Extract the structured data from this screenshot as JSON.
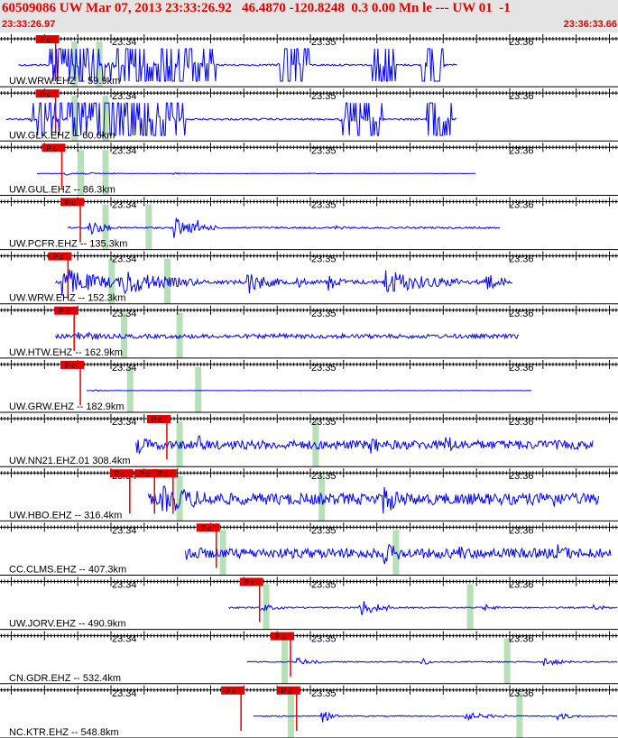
{
  "header": {
    "title": "60509086 UW Mar 07, 2013 23:33:26.92   46.4870 -120.8248  0.3 0.00 Mn le --- UW 01  -1",
    "start_time": "23:33:26.97",
    "end_time": "23:36:33.66"
  },
  "colors": {
    "header_text": "#e00000",
    "header_bg": "#e4e4e4",
    "trace": "#0000ee",
    "pick_fill": "#e00000",
    "window_fill": "#b8e0b8",
    "axis": "#000000"
  },
  "time_labels": [
    "23:34",
    "23:35",
    "23:36"
  ],
  "traces": [
    {
      "label": "UW.WRW.EHZ -- 59.9km",
      "picks": [
        {
          "text": "P c",
          "t": 0.09
        }
      ],
      "windows": [
        0.12,
        0.16
      ],
      "wave": {
        "start": 0.03,
        "end": 0.74,
        "style": "clipped",
        "amp": 0.85,
        "bursts": [
          [
            0.08,
            0.35,
            1
          ],
          [
            0.45,
            0.5,
            1
          ],
          [
            0.6,
            0.64,
            1
          ],
          [
            0.68,
            0.72,
            1
          ]
        ]
      }
    },
    {
      "label": "UW.GLK.EHZ -- 60.6km",
      "picks": [
        {
          "text": "P c",
          "t": 0.09
        }
      ],
      "windows": [
        0.12,
        0.17
      ],
      "wave": {
        "start": 0.01,
        "end": 0.74,
        "style": "clipped",
        "amp": 0.85,
        "bursts": [
          [
            0.05,
            0.3,
            1
          ],
          [
            0.55,
            0.62,
            1
          ],
          [
            0.69,
            0.73,
            1
          ]
        ]
      }
    },
    {
      "label": "UW.GUL.EHZ -- 86.3km",
      "picks": [
        {
          "text": "P c",
          "t": 0.1
        }
      ],
      "windows": [
        0.13,
        0.17
      ],
      "wave": {
        "start": 0.06,
        "end": 0.77,
        "style": "quiet",
        "amp": 0.1,
        "bursts": [
          [
            0.1,
            0.2,
            0.8
          ],
          [
            0.28,
            0.32,
            0.5
          ],
          [
            0.5,
            0.55,
            0.3
          ]
        ]
      }
    },
    {
      "label": "UW.PCFR.EHZ -- 135.3km",
      "picks": [
        {
          "text": "P c",
          "t": 0.13
        }
      ],
      "windows": [
        0.17,
        0.24
      ],
      "wave": {
        "start": 0.11,
        "end": 0.81,
        "style": "event",
        "amp": 0.55,
        "bursts": [
          [
            0.14,
            0.18,
            0.9
          ],
          [
            0.28,
            0.33,
            1
          ],
          [
            0.32,
            0.35,
            0.6
          ],
          [
            0.54,
            0.58,
            0.2
          ]
        ]
      }
    },
    {
      "label": "UW.WRW.EHZ -- 152.3km",
      "picks": [
        {
          "text": "P c",
          "t": 0.11
        }
      ],
      "windows": [
        0.18,
        0.27
      ],
      "wave": {
        "start": 0.09,
        "end": 0.83,
        "style": "spiky",
        "amp": 0.7,
        "bursts": [
          [
            0.1,
            0.22,
            1
          ],
          [
            0.2,
            0.32,
            0.9
          ],
          [
            0.4,
            0.46,
            0.8
          ],
          [
            0.48,
            0.5,
            0.6
          ],
          [
            0.53,
            0.56,
            0.7
          ],
          [
            0.62,
            0.75,
            0.9
          ],
          [
            0.78,
            0.82,
            0.9
          ]
        ]
      }
    },
    {
      "label": "UW.HTW.EHZ -- 162.9km",
      "picks": [
        {
          "text": "P c",
          "t": 0.12
        }
      ],
      "windows": [
        0.2,
        0.29
      ],
      "wave": {
        "start": 0.09,
        "end": 0.84,
        "style": "noisy",
        "amp": 0.3,
        "bursts": [
          [
            0.12,
            0.2,
            1
          ],
          [
            0.45,
            0.5,
            0.6
          ],
          [
            0.55,
            0.6,
            0.5
          ]
        ]
      }
    },
    {
      "label": "UW.GRW.EHZ -- 182.9km",
      "picks": [
        {
          "text": "P c",
          "t": 0.13
        }
      ],
      "windows": [
        0.21,
        0.32
      ],
      "wave": {
        "start": 0.14,
        "end": 0.86,
        "style": "quiet",
        "amp": 0.05,
        "bursts": [
          [
            0.15,
            0.18,
            1
          ],
          [
            0.48,
            0.5,
            0.3
          ]
        ]
      }
    },
    {
      "label": "UW.NN21.EHZ.01 308.4km",
      "picks": [
        {
          "text": "P c",
          "t": 0.27
        }
      ],
      "windows": [
        0.29,
        0.51
      ],
      "wave": {
        "start": 0.22,
        "end": 0.96,
        "style": "dense",
        "amp": 0.5,
        "bursts": [
          [
            0.22,
            0.3,
            0.8
          ],
          [
            0.32,
            0.36,
            0.9
          ],
          [
            0.6,
            0.66,
            0.8
          ],
          [
            0.72,
            0.78,
            0.9
          ]
        ]
      }
    },
    {
      "label": "UW.HBO.EHZ -- 316.4km",
      "picks": [
        {
          "text": "P c",
          "t": 0.21
        },
        {
          "text": "P c",
          "t": 0.25
        },
        {
          "text": "P c",
          "t": 0.28
        }
      ],
      "windows": [
        0.29,
        0.52
      ],
      "wave": {
        "start": 0.24,
        "end": 0.97,
        "style": "dense",
        "amp": 0.65,
        "bursts": [
          [
            0.26,
            0.5,
            0.9
          ],
          [
            0.62,
            0.7,
            1
          ],
          [
            0.88,
            0.95,
            0.9
          ]
        ]
      }
    },
    {
      "label": "CC.CLMS.EHZ -- 407.3km",
      "picks": [
        {
          "text": "P c",
          "t": 0.35
        }
      ],
      "windows": [
        0.36,
        0.64
      ],
      "wave": {
        "start": 0.3,
        "end": 0.99,
        "style": "dense",
        "amp": 0.55,
        "bursts": [
          [
            0.3,
            0.38,
            0.8
          ],
          [
            0.62,
            0.7,
            0.9
          ],
          [
            0.74,
            0.8,
            0.7
          ],
          [
            0.9,
            0.97,
            0.8
          ]
        ]
      }
    },
    {
      "label": "UW.JORV.EHZ -- 490.9km",
      "picks": [
        {
          "text": "P c",
          "t": 0.42
        }
      ],
      "windows": [
        0.43,
        0.76
      ],
      "wave": {
        "start": 0.37,
        "end": 1.0,
        "style": "event",
        "amp": 0.45,
        "bursts": [
          [
            0.42,
            0.46,
            0.5
          ],
          [
            0.58,
            0.63,
            1
          ],
          [
            0.78,
            0.82,
            0.4
          ],
          [
            0.96,
            0.99,
            0.4
          ]
        ]
      }
    },
    {
      "label": "CN.GDR.EHZ -- 532.4km",
      "picks": [
        {
          "text": "P c",
          "t": 0.47
        }
      ],
      "windows": [
        0.46,
        0.82
      ],
      "wave": {
        "start": 0.4,
        "end": 1.0,
        "style": "event",
        "amp": 0.35,
        "bursts": [
          [
            0.48,
            0.52,
            0.6
          ],
          [
            0.68,
            0.7,
            0.8
          ],
          [
            0.88,
            0.93,
            0.6
          ]
        ]
      }
    },
    {
      "label": "NC.KTR.EHZ -- 548.8km",
      "picks": [
        {
          "text": "P c",
          "t": 0.39
        },
        {
          "text": "P c",
          "t": 0.48
        }
      ],
      "windows": [
        0.47,
        0.84
      ],
      "wave": {
        "start": 0.41,
        "end": 1.0,
        "style": "event",
        "amp": 0.35,
        "bursts": [
          [
            0.52,
            0.55,
            0.9
          ],
          [
            0.75,
            0.82,
            0.6
          ],
          [
            0.9,
            0.94,
            0.6
          ]
        ]
      }
    }
  ]
}
